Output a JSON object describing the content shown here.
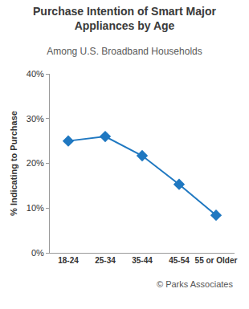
{
  "chart_data": {
    "type": "line",
    "title": "Purchase Intention of Smart Major Appliances by Age",
    "subtitle": "Among U.S. Broadband Households",
    "y_label": "% Indicating to Purchase",
    "categories": [
      "18-24",
      "25-34",
      "35-44",
      "45-54",
      "55 or Older"
    ],
    "values": [
      25,
      26,
      21.7,
      15.3,
      8.4
    ],
    "color": "#1f78c1",
    "marker": "diamond",
    "line_style": "solid",
    "ylim": [
      0,
      40
    ],
    "yticks": [
      {
        "value": 0,
        "label": "0%"
      },
      {
        "value": 10,
        "label": "10%"
      },
      {
        "value": 20,
        "label": "20%"
      },
      {
        "value": 30,
        "label": "30%"
      },
      {
        "value": 40,
        "label": "40%"
      }
    ],
    "grid": false,
    "annotations": [
      {
        "text": "© Parks Associates"
      }
    ]
  }
}
